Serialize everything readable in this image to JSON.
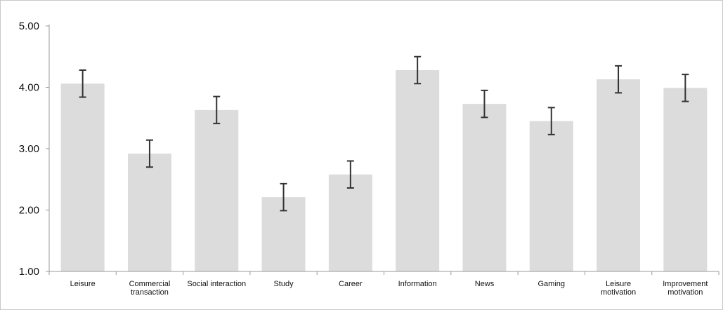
{
  "chart_data": {
    "type": "bar",
    "title": "",
    "xlabel": "",
    "ylabel": "",
    "ylim": [
      1.0,
      5.0
    ],
    "yticks": [
      "1.00",
      "2.00",
      "3.00",
      "4.00",
      "5.00"
    ],
    "categories": [
      "Leisure",
      "Commercial transaction",
      "Social interaction",
      "Study",
      "Career",
      "Information",
      "News",
      "Gaming",
      "Leisure motivation",
      "Improvement motivation"
    ],
    "values": [
      4.06,
      2.92,
      3.63,
      2.21,
      2.58,
      4.28,
      3.73,
      3.45,
      4.13,
      3.99
    ],
    "error": [
      0.22,
      0.22,
      0.22,
      0.22,
      0.22,
      0.22,
      0.22,
      0.22,
      0.22,
      0.22
    ],
    "grid": false,
    "legend": "none",
    "colors": {
      "bar": "#dcdcdc",
      "error_bar": "#333333",
      "axis": "#999999",
      "frame": "#c8c8c8"
    }
  }
}
